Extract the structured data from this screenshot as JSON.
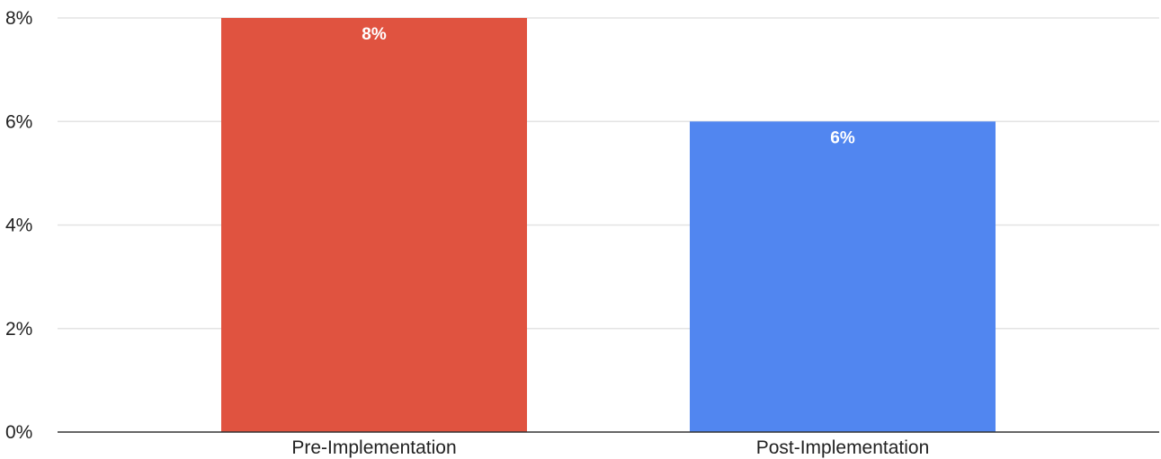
{
  "chart_data": {
    "type": "bar",
    "categories": [
      "Pre-Implementation",
      "Post-Implementation"
    ],
    "values": [
      8,
      6
    ],
    "value_labels": [
      "8%",
      "6%"
    ],
    "bar_colors": [
      "#e05340",
      "#5186f0"
    ],
    "title": "",
    "xlabel": "",
    "ylabel": "",
    "ylim": [
      0,
      8
    ],
    "yticks": [
      0,
      2,
      4,
      6,
      8
    ],
    "ytick_labels": [
      "0%",
      "2%",
      "4%",
      "6%",
      "8%"
    ],
    "grid": true,
    "legend": "none"
  }
}
